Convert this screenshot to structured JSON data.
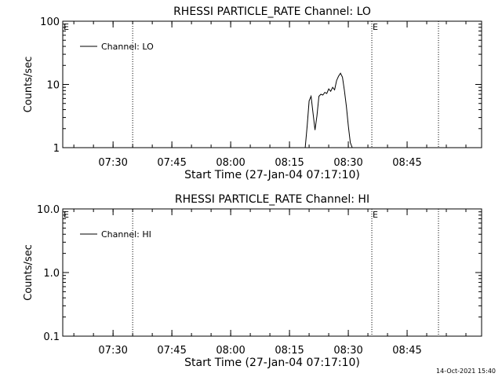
{
  "footer": {
    "timestamp": "14-Oct-2021 15:40"
  },
  "chart_data": [
    {
      "type": "line",
      "title": "RHESSI PARTICLE_RATE Channel: LO",
      "xlabel": "Start Time (27-Jan-04 07:17:10)",
      "ylabel": "Counts/sec",
      "yscale": "log",
      "ylim": [
        1,
        100
      ],
      "ytick_labels": [
        "1",
        "10",
        "100"
      ],
      "xlim_minutes": [
        "07:17:10",
        "09:04:00"
      ],
      "xtick_labels": [
        "07:30",
        "07:45",
        "08:00",
        "08:15",
        "08:30",
        "08:45"
      ],
      "grid": false,
      "legend": {
        "placement": "top-left",
        "entries": [
          "Channel: LO"
        ]
      },
      "markers": [
        {
          "time": "07:35",
          "label": ""
        },
        {
          "time": "08:36",
          "label": "E"
        },
        {
          "time": "08:53",
          "label": ""
        }
      ],
      "edge_label_left": "E",
      "series": [
        {
          "name": "Channel: LO",
          "x": [
            "08:19:00",
            "08:19:30",
            "08:20:00",
            "08:20:30",
            "08:21:00",
            "08:21:30",
            "08:22:00",
            "08:22:30",
            "08:23:00",
            "08:23:30",
            "08:24:00",
            "08:24:30",
            "08:25:00",
            "08:25:30",
            "08:26:00",
            "08:26:30",
            "08:27:00",
            "08:27:30",
            "08:28:00",
            "08:28:30",
            "08:29:00",
            "08:29:30",
            "08:30:00",
            "08:30:30",
            "08:31:00"
          ],
          "values": [
            1.0,
            2.2,
            5.5,
            6.5,
            3.5,
            1.9,
            3.2,
            6.5,
            7.0,
            6.8,
            7.5,
            7.2,
            8.5,
            7.8,
            9.0,
            8.2,
            11.5,
            13.5,
            15.0,
            13.0,
            8.0,
            4.5,
            2.2,
            1.2,
            1.0
          ]
        }
      ]
    },
    {
      "type": "line",
      "title": "RHESSI PARTICLE_RATE Channel: HI",
      "xlabel": "Start Time (27-Jan-04 07:17:10)",
      "ylabel": "Counts/sec",
      "yscale": "log",
      "ylim": [
        0.1,
        10.0
      ],
      "ytick_labels": [
        "0.1",
        "1.0",
        "10.0"
      ],
      "xlim_minutes": [
        "07:17:10",
        "09:04:00"
      ],
      "xtick_labels": [
        "07:30",
        "07:45",
        "08:00",
        "08:15",
        "08:30",
        "08:45"
      ],
      "grid": false,
      "legend": {
        "placement": "top-left",
        "entries": [
          "Channel: HI"
        ]
      },
      "markers": [
        {
          "time": "07:35",
          "label": ""
        },
        {
          "time": "08:36",
          "label": "E"
        },
        {
          "time": "08:53",
          "label": ""
        }
      ],
      "edge_label_left": "E",
      "series": [
        {
          "name": "Channel: HI",
          "x": [],
          "values": []
        }
      ]
    }
  ]
}
